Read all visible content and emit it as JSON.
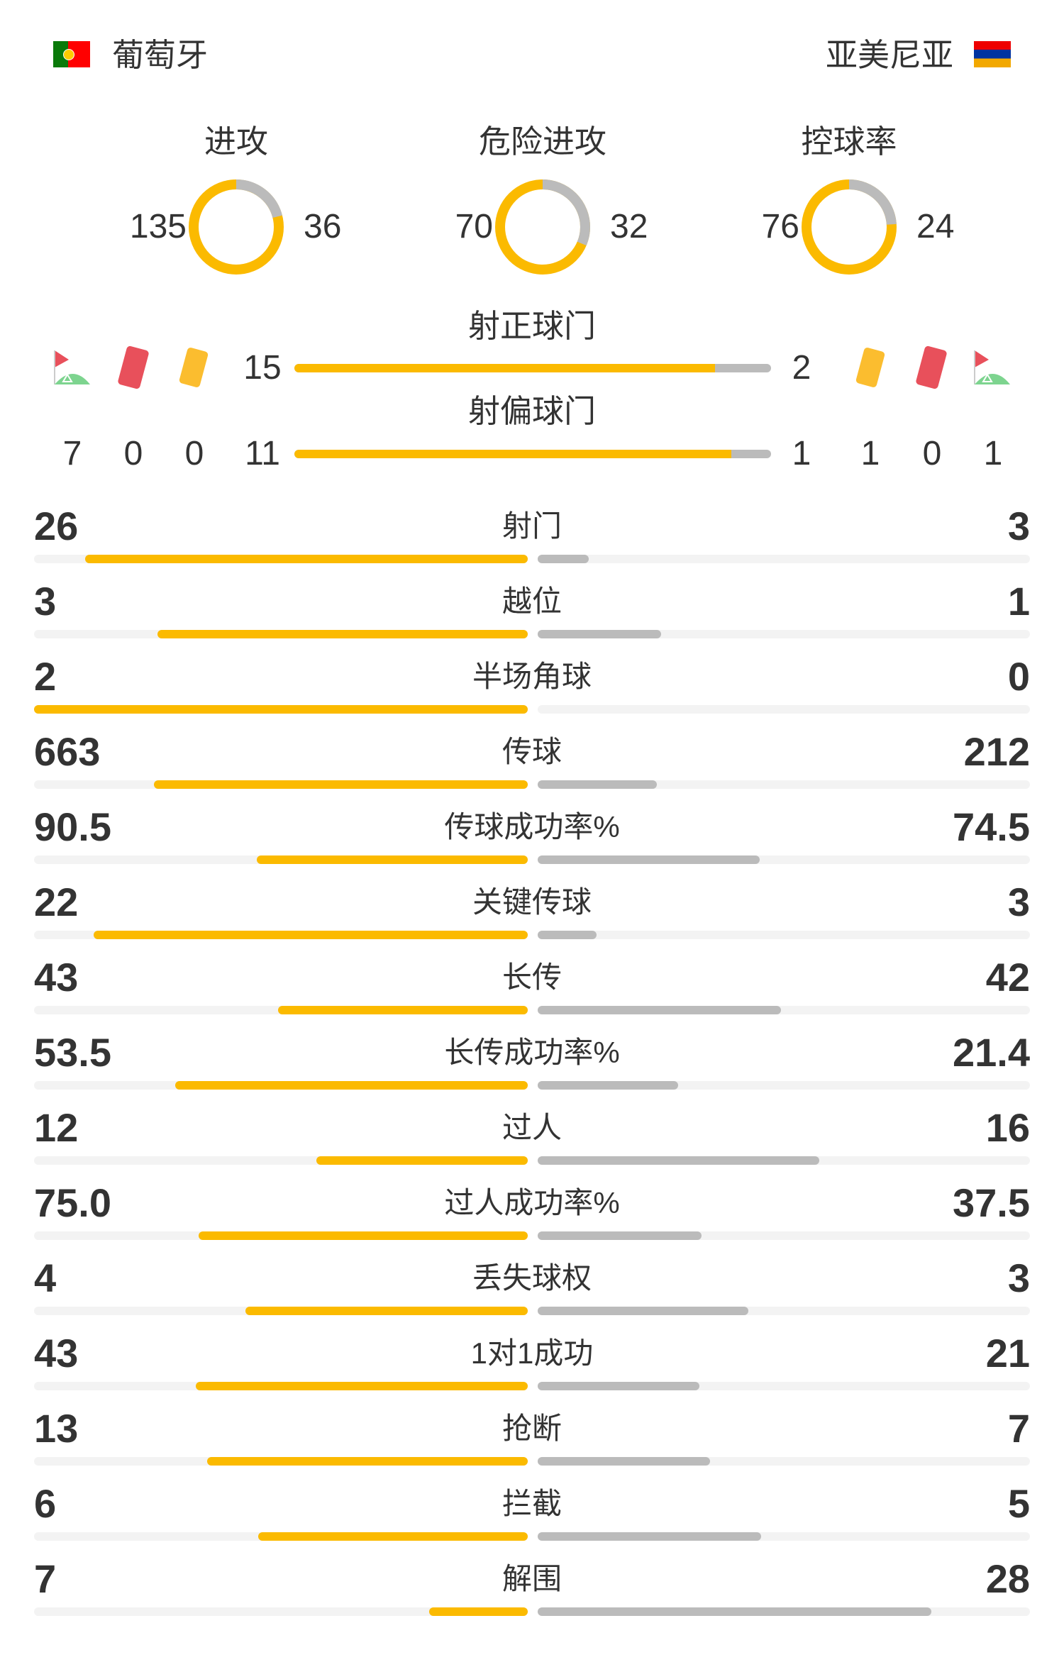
{
  "home": {
    "name": "葡萄牙",
    "flag": "portugal-flag"
  },
  "away": {
    "name": "亚美尼亚",
    "flag": "armenia-flag"
  },
  "colors": {
    "home": "#fbba00",
    "away": "#bbbbbb",
    "track": "#f3f3f3"
  },
  "donuts": [
    {
      "label": "进攻",
      "home": "135",
      "away": "36"
    },
    {
      "label": "危险进攻",
      "home": "70",
      "away": "32"
    },
    {
      "label": "控球率",
      "home": "76",
      "away": "24"
    }
  ],
  "shots_on_target": {
    "label": "射正球门",
    "home": "15",
    "away": "2"
  },
  "shots_off_target": {
    "label": "射偏球门",
    "home": "11",
    "away": "1"
  },
  "home_counts": {
    "corners": "7",
    "red_cards": "0",
    "yellow_cards": "0"
  },
  "away_counts": {
    "yellow_cards": "1",
    "red_cards": "0",
    "corners": "1"
  },
  "stats": [
    {
      "label": "射门",
      "home": "26",
      "away": "3"
    },
    {
      "label": "越位",
      "home": "3",
      "away": "1"
    },
    {
      "label": "半场角球",
      "home": "2",
      "away": "0"
    },
    {
      "label": "传球",
      "home": "663",
      "away": "212"
    },
    {
      "label": "传球成功率%",
      "home": "90.5",
      "away": "74.5"
    },
    {
      "label": "关键传球",
      "home": "22",
      "away": "3"
    },
    {
      "label": "长传",
      "home": "43",
      "away": "42"
    },
    {
      "label": "长传成功率%",
      "home": "53.5",
      "away": "21.4"
    },
    {
      "label": "过人",
      "home": "12",
      "away": "16"
    },
    {
      "label": "过人成功率%",
      "home": "75.0",
      "away": "37.5"
    },
    {
      "label": "丢失球权",
      "home": "4",
      "away": "3"
    },
    {
      "label": "1对1成功",
      "home": "43",
      "away": "21"
    },
    {
      "label": "抢断",
      "home": "13",
      "away": "7"
    },
    {
      "label": "拦截",
      "home": "6",
      "away": "5"
    },
    {
      "label": "解围",
      "home": "7",
      "away": "28"
    }
  ]
}
